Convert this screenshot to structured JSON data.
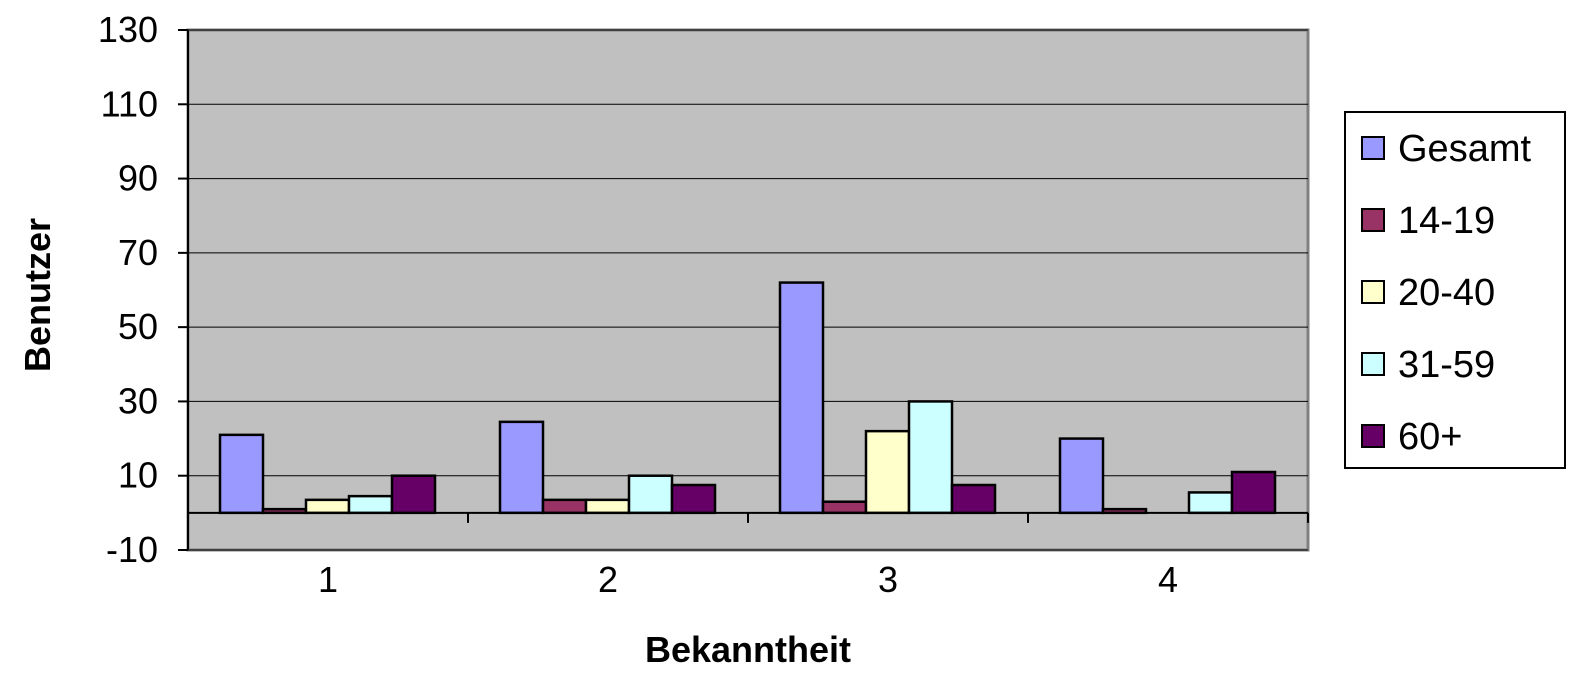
{
  "chart_data": {
    "type": "bar",
    "title": "",
    "xlabel": "Bekanntheit",
    "ylabel": "Benutzer",
    "categories": [
      "1",
      "2",
      "3",
      "4"
    ],
    "ylim": [
      -10,
      130
    ],
    "yticks": [
      "130",
      "110",
      "90",
      "70",
      "50",
      "30",
      "10",
      "-10"
    ],
    "ytick_values": [
      130,
      110,
      90,
      70,
      50,
      30,
      10,
      -10
    ],
    "grid": true,
    "legend_position": "right",
    "series": [
      {
        "name": "Gesamt",
        "values": [
          21,
          24.5,
          62,
          20
        ],
        "color": "#9999ff"
      },
      {
        "name": "14-19",
        "values": [
          1,
          3.5,
          3,
          1
        ],
        "color": "#993366"
      },
      {
        "name": "20-40",
        "values": [
          3.5,
          3.5,
          22,
          0
        ],
        "color": "#ffffcc"
      },
      {
        "name": "31-59",
        "values": [
          4.5,
          10,
          30,
          5.5
        ],
        "color": "#ccffff"
      },
      {
        "name": "60+",
        "values": [
          10,
          7.5,
          7.5,
          11
        ],
        "color": "#660066"
      }
    ],
    "plot_background": "#c0c0c0"
  }
}
